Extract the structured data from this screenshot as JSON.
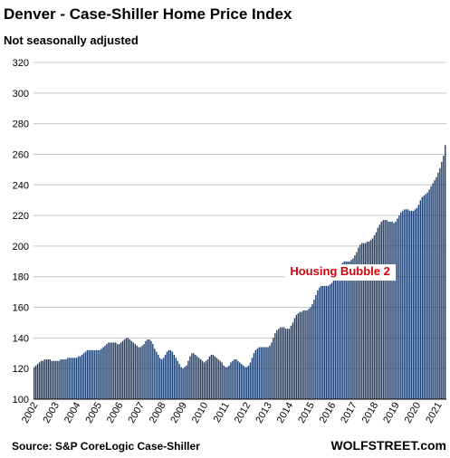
{
  "title": "Denver - Case-Shiller Home Price Index",
  "subtitle": "Not seasonally adjusted",
  "source": "Source: S&P CoreLogic Case-Shiller",
  "brand": "WOLFSTREET.com",
  "colors": {
    "bar": "#1f3f6e",
    "gridline": "#c6c6c6",
    "annotation": "#d8000c",
    "annotation_background": "#ffffff"
  },
  "chart_data": {
    "type": "bar",
    "title": "Denver - Case-Shiller Home Price Index",
    "subtitle": "Not seasonally adjusted",
    "ylim": [
      100,
      320
    ],
    "yticks": [
      100,
      120,
      140,
      160,
      180,
      200,
      220,
      240,
      260,
      280,
      300,
      320
    ],
    "grid": true,
    "xticks": [
      "2002",
      "2003",
      "2004",
      "2005",
      "2006",
      "2007",
      "2008",
      "2009",
      "2010",
      "2011",
      "2012",
      "2013",
      "2014",
      "2015",
      "2016",
      "2017",
      "2018",
      "2019",
      "2020",
      "2021"
    ],
    "frequency": "monthly",
    "start": "2002-01",
    "end": "2021-05",
    "annual_anchors": [
      {
        "year": 2002,
        "values": [
          121,
          122,
          123,
          124,
          125,
          125,
          126,
          126,
          126,
          126,
          125,
          125
        ]
      },
      {
        "year": 2003,
        "values": [
          125,
          125,
          125,
          126,
          126,
          126,
          126,
          127,
          127,
          127,
          127,
          127
        ]
      },
      {
        "year": 2004,
        "values": [
          127,
          128,
          128,
          129,
          130,
          131,
          132,
          132,
          132,
          132,
          132,
          132
        ]
      },
      {
        "year": 2005,
        "values": [
          132,
          132,
          133,
          134,
          135,
          136,
          137,
          137,
          137,
          137,
          137,
          136
        ]
      },
      {
        "year": 2006,
        "values": [
          136,
          137,
          138,
          139,
          140,
          140,
          139,
          138,
          137,
          136,
          135,
          134
        ]
      },
      {
        "year": 2007,
        "values": [
          134,
          135,
          136,
          138,
          139,
          139,
          138,
          136,
          133,
          131,
          129,
          127
        ]
      },
      {
        "year": 2008,
        "values": [
          126,
          127,
          129,
          131,
          132,
          132,
          131,
          129,
          127,
          125,
          123,
          121
        ]
      },
      {
        "year": 2009,
        "values": [
          120,
          121,
          122,
          125,
          128,
          130,
          130,
          129,
          128,
          127,
          126,
          125
        ]
      },
      {
        "year": 2010,
        "values": [
          124,
          125,
          126,
          128,
          129,
          129,
          128,
          127,
          126,
          125,
          124,
          122
        ]
      },
      {
        "year": 2011,
        "values": [
          121,
          121,
          122,
          124,
          125,
          126,
          126,
          125,
          124,
          123,
          122,
          121
        ]
      },
      {
        "year": 2012,
        "values": [
          121,
          122,
          124,
          127,
          130,
          132,
          133,
          134,
          134,
          134,
          134,
          134
        ]
      },
      {
        "year": 2013,
        "values": [
          134,
          135,
          137,
          140,
          143,
          145,
          146,
          147,
          147,
          147,
          146,
          146
        ]
      },
      {
        "year": 2014,
        "values": [
          146,
          148,
          150,
          153,
          155,
          156,
          157,
          157,
          158,
          158,
          158,
          159
        ]
      },
      {
        "year": 2015,
        "values": [
          160,
          162,
          165,
          168,
          171,
          173,
          174,
          174,
          174,
          174,
          174,
          175
        ]
      },
      {
        "year": 2016,
        "values": [
          176,
          178,
          180,
          183,
          186,
          188,
          189,
          190,
          190,
          190,
          190,
          191
        ]
      },
      {
        "year": 2017,
        "values": [
          192,
          194,
          196,
          199,
          201,
          202,
          202,
          202,
          203,
          203,
          204,
          205
        ]
      },
      {
        "year": 2018,
        "values": [
          207,
          209,
          212,
          214,
          216,
          217,
          217,
          217,
          216,
          216,
          216,
          215
        ]
      },
      {
        "year": 2019,
        "values": [
          216,
          218,
          220,
          222,
          223,
          224,
          224,
          224,
          223,
          223,
          223,
          224
        ]
      },
      {
        "year": 2020,
        "values": [
          225,
          227,
          230,
          232,
          233,
          234,
          235,
          237,
          239,
          241,
          243,
          245
        ]
      },
      {
        "year": 2021,
        "values": [
          248,
          251,
          255,
          259,
          266
        ]
      }
    ],
    "annotations": [
      {
        "text": "Housing Bubble 2",
        "x": "2016-06",
        "y": 181
      }
    ]
  }
}
